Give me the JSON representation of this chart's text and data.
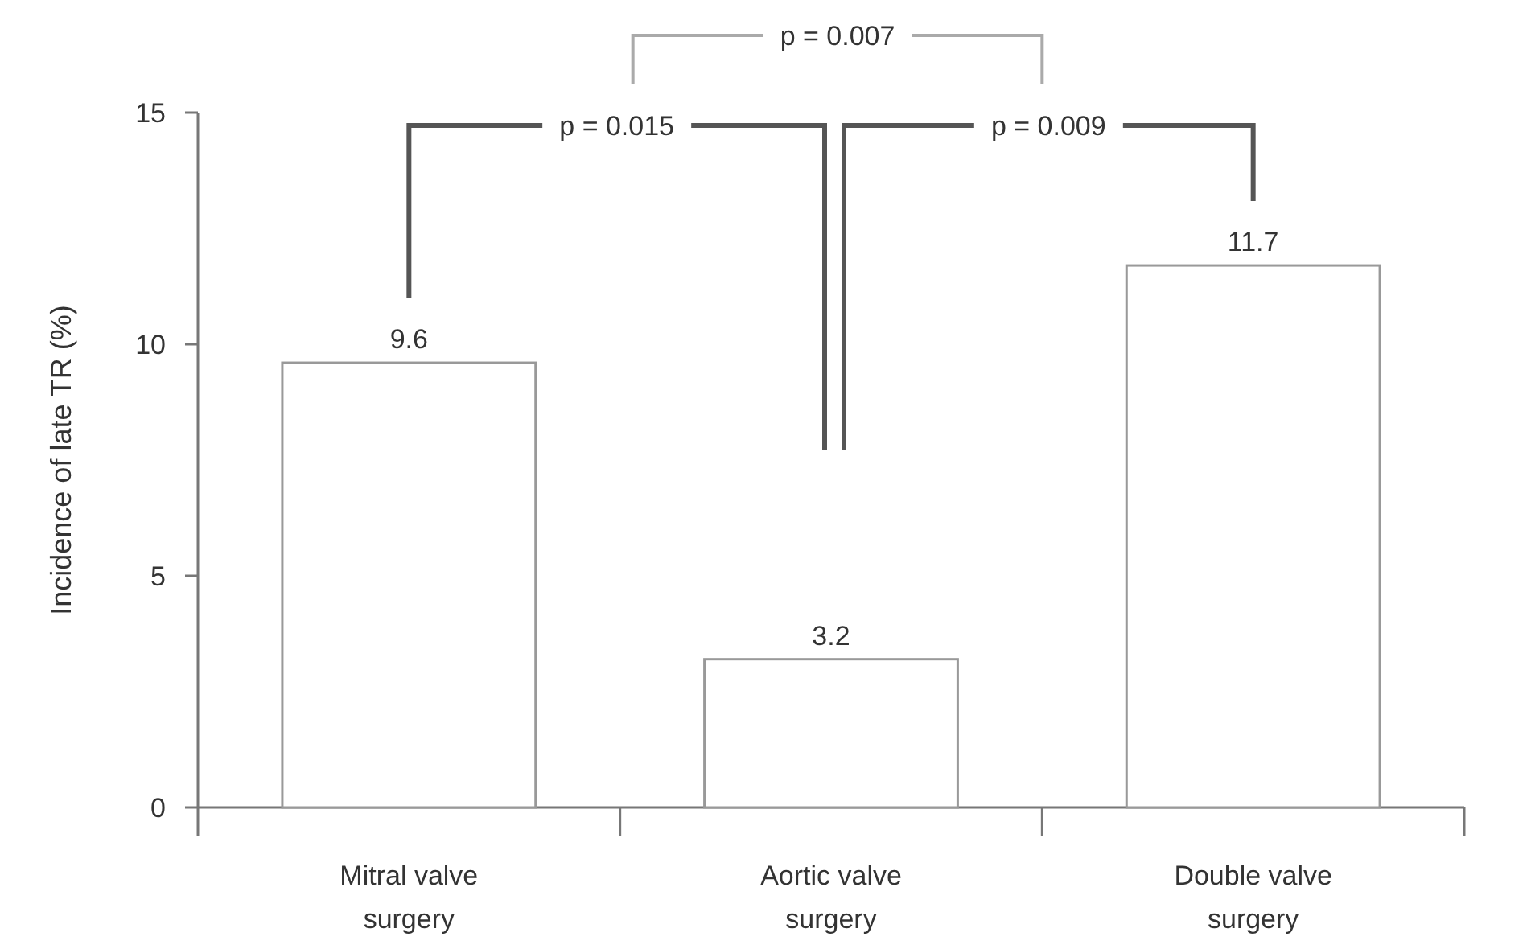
{
  "chart_data": {
    "type": "bar",
    "ylabel": "Incidence of late TR (%)",
    "categories": [
      "Mitral valve surgery",
      "Aortic valve surgery",
      "Double valve surgery"
    ],
    "values": [
      9.6,
      3.2,
      11.7
    ],
    "color": "#ffffff",
    "ylim": [
      0,
      15
    ],
    "yticks": [
      0,
      5,
      10,
      15
    ],
    "data_labels": true,
    "annotations": [
      "p = 0.015",
      "p = 0.009",
      "p = 0.007"
    ]
  }
}
